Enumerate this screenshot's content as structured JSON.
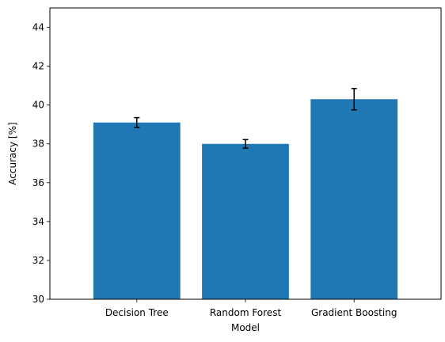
{
  "chart_data": {
    "type": "bar",
    "title": "",
    "xlabel": "Model",
    "ylabel": "Accuracy [%]",
    "categories": [
      "Decision Tree",
      "Random Forest",
      "Gradient Boosting"
    ],
    "values": [
      39.1,
      38.0,
      40.3
    ],
    "error": [
      0.25,
      0.22,
      0.55
    ],
    "ylim": [
      30,
      45
    ],
    "yticks": [
      30,
      32,
      34,
      36,
      38,
      40,
      42,
      44
    ],
    "grid": false,
    "bar_color": "#1f77b4",
    "error_color": "#000000"
  }
}
